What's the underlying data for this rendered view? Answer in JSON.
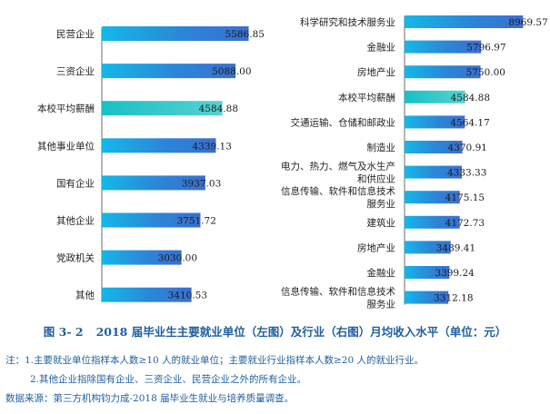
{
  "colors": {
    "bar_blue": "#2f7bd4",
    "bar_teal": "#3cc8c4",
    "caption": "#1f5fa0"
  },
  "caption": {
    "number": "图 3- 2",
    "text": "2018 届毕业生主要就业单位（左图）及行业（右图）月均收入水平（单位：元）"
  },
  "notes": {
    "note1": "注：1.主要就业单位指样本人数≥10 人的就业单位；主要就业行业指样本人数≥20 人的就业行业。",
    "note2": "2.其他企业指除国有企业、三资企业、民营企业之外的所有企业。",
    "source": "数据来源：第三方机构钧力成-2018 届毕业生就业与培养质量调查。"
  },
  "chart_data": [
    {
      "type": "bar",
      "orientation": "horizontal",
      "categories": [
        "民营企业",
        "三资企业",
        "本校平均薪酬",
        "其他事业单位",
        "国有企业",
        "其他企业",
        "党政机关",
        "其他"
      ],
      "values": [
        5586.85,
        5088.0,
        4584.88,
        4339.13,
        3937.03,
        3751.72,
        3030.0,
        3410.53
      ],
      "value_labels": [
        "5586.85",
        "5088.00",
        "4584.88",
        "4339.13",
        "3937.03",
        "3751.72",
        "3030.00",
        "3410.53"
      ],
      "highlight_index": 2,
      "xlim": [
        0,
        6000
      ]
    },
    {
      "type": "bar",
      "orientation": "horizontal",
      "categories": [
        [
          "科学研究和技术服务业"
        ],
        [
          "金融业"
        ],
        [
          "房地产业"
        ],
        [
          "本校平均薪酬"
        ],
        [
          "交通运输、仓储和邮政业"
        ],
        [
          "制造业"
        ],
        [
          "电力、热力、燃气及水生产",
          "和供应业"
        ],
        [
          "信息传输、软件和信息技术",
          "服务业"
        ],
        [
          "建筑业"
        ],
        [
          "房地产业"
        ],
        [
          "金融业"
        ],
        [
          "信息传输、软件和信息技术",
          "服务业"
        ]
      ],
      "values": [
        8969.57,
        5796.97,
        5750.0,
        4584.88,
        4564.17,
        4370.91,
        4333.33,
        4175.15,
        4172.73,
        3489.41,
        3399.24,
        3312.18
      ],
      "value_labels": [
        "8969.57",
        "5796.97",
        "5750.00",
        "4584.88",
        "4564.17",
        "4370.91",
        "4333.33",
        "4175.15",
        "4172.73",
        "3489.41",
        "3399.24",
        "3312.18"
      ],
      "highlight_index": 3,
      "xlim": [
        0,
        9000
      ]
    }
  ]
}
